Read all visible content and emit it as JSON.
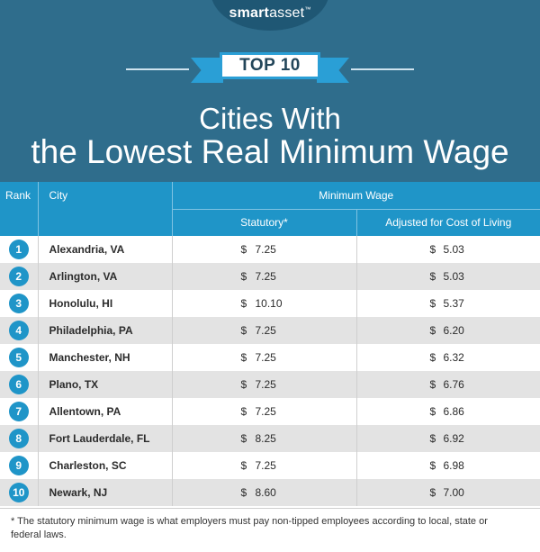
{
  "brand": {
    "logo_bold": "smart",
    "logo_rest": "asset",
    "logo_mark": "™"
  },
  "ribbon": {
    "label": "TOP 10"
  },
  "title": {
    "line1": "Cities With",
    "line2": "the Lowest Real Minimum Wage"
  },
  "table": {
    "headers": {
      "rank": "Rank",
      "city": "City",
      "group": "Minimum Wage",
      "statutory": "Statutory*",
      "adjusted": "Adjusted for Cost of Living"
    },
    "currency": "$",
    "rows": [
      {
        "rank": "1",
        "city": "Alexandria, VA",
        "statutory": "7.25",
        "adjusted": "5.03"
      },
      {
        "rank": "2",
        "city": "Arlington, VA",
        "statutory": "7.25",
        "adjusted": "5.03"
      },
      {
        "rank": "3",
        "city": "Honolulu, HI",
        "statutory": "10.10",
        "adjusted": "5.37"
      },
      {
        "rank": "4",
        "city": "Philadelphia, PA",
        "statutory": "7.25",
        "adjusted": "6.20"
      },
      {
        "rank": "5",
        "city": "Manchester, NH",
        "statutory": "7.25",
        "adjusted": "6.32"
      },
      {
        "rank": "6",
        "city": "Plano, TX",
        "statutory": "7.25",
        "adjusted": "6.76"
      },
      {
        "rank": "7",
        "city": "Allentown, PA",
        "statutory": "7.25",
        "adjusted": "6.86"
      },
      {
        "rank": "8",
        "city": "Fort Lauderdale, FL",
        "statutory": "8.25",
        "adjusted": "6.92"
      },
      {
        "rank": "9",
        "city": "Charleston, SC",
        "statutory": "7.25",
        "adjusted": "6.98"
      },
      {
        "rank": "10",
        "city": "Newark, NJ",
        "statutory": "8.60",
        "adjusted": "7.00"
      }
    ]
  },
  "footnote": "* The statutory minimum wage is what employers must pay non-tipped employees according to local, state or federal laws.",
  "colors": {
    "header_bg": "#2f6d8c",
    "accent": "#1f95c8",
    "row_alt": "#e3e3e3"
  }
}
